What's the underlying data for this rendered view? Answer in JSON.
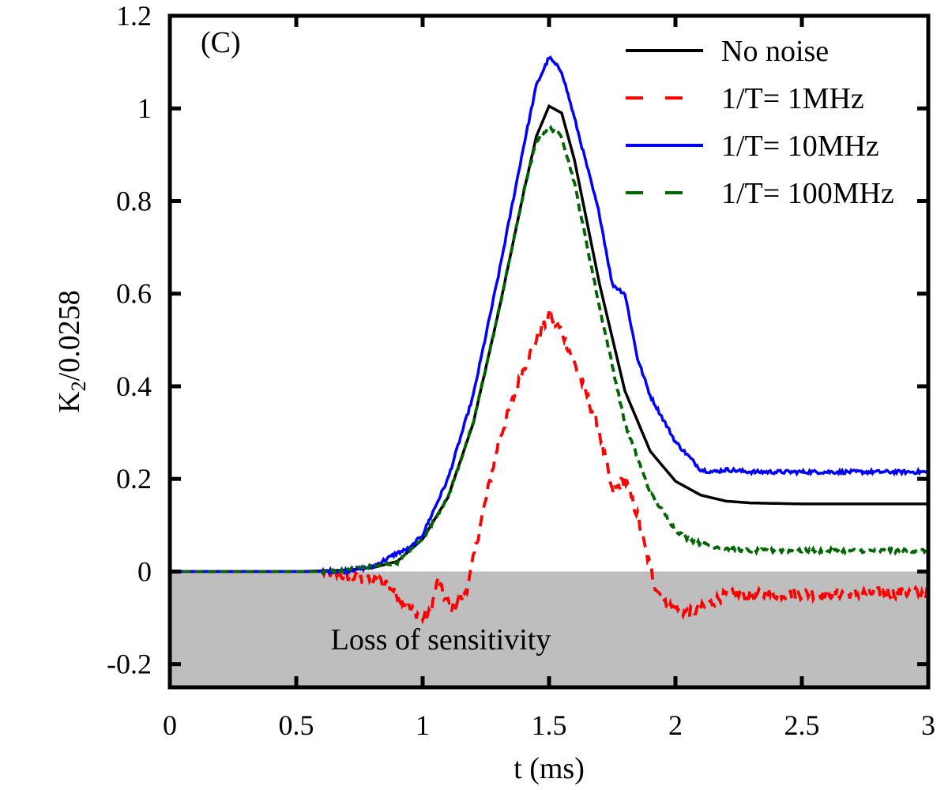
{
  "chart_data": {
    "type": "line",
    "panel_label": "(C)",
    "xlabel": "t (ms)",
    "ylabel_main": "K",
    "ylabel_sub": "2",
    "ylabel_rest": "/0.0258",
    "xlim": [
      0,
      3
    ],
    "ylim": [
      -0.25,
      1.2
    ],
    "xticks": [
      0,
      0.5,
      1,
      1.5,
      2,
      2.5,
      3
    ],
    "xtick_labels": [
      "0",
      "0.5",
      "1",
      "1.5",
      "2",
      "2.5",
      "3"
    ],
    "yticks": [
      -0.2,
      0,
      0.2,
      0.4,
      0.6,
      0.8,
      1,
      1.2
    ],
    "ytick_labels": [
      "-0.2",
      "0",
      "0.2",
      "0.4",
      "0.6",
      "0.8",
      "1",
      "1.2"
    ],
    "shaded_region": {
      "y_from": -0.25,
      "y_to": 0,
      "color": "#bebebe",
      "label": "Loss of sensitivity"
    },
    "legend_position": "top-right",
    "series": [
      {
        "name": "No noise",
        "color": "#000000",
        "style": "solid",
        "x": [
          0,
          0.5,
          0.7,
          0.8,
          0.9,
          1.0,
          1.1,
          1.2,
          1.3,
          1.4,
          1.45,
          1.5,
          1.55,
          1.6,
          1.7,
          1.8,
          1.9,
          2.0,
          2.1,
          2.2,
          2.3,
          2.5,
          3.0
        ],
        "y": [
          0,
          0,
          0.003,
          0.008,
          0.022,
          0.07,
          0.16,
          0.32,
          0.56,
          0.82,
          0.94,
          1.005,
          0.99,
          0.89,
          0.62,
          0.39,
          0.26,
          0.195,
          0.165,
          0.152,
          0.148,
          0.146,
          0.146
        ]
      },
      {
        "name": "1/T= 1MHz",
        "color": "#ff0000",
        "style": "dashed",
        "x": [
          0,
          0.6,
          0.7,
          0.8,
          0.85,
          0.9,
          0.95,
          1.0,
          1.03,
          1.06,
          1.09,
          1.12,
          1.15,
          1.18,
          1.22,
          1.26,
          1.3,
          1.35,
          1.4,
          1.45,
          1.5,
          1.55,
          1.6,
          1.65,
          1.7,
          1.75,
          1.8,
          1.85,
          1.88,
          1.92,
          1.96,
          2.0,
          2.05,
          2.1,
          2.2,
          2.3,
          2.5,
          3.0
        ],
        "y": [
          0,
          0,
          -0.01,
          -0.02,
          -0.02,
          -0.05,
          -0.08,
          -0.1,
          -0.09,
          -0.02,
          -0.06,
          -0.08,
          -0.06,
          -0.03,
          0.08,
          0.18,
          0.28,
          0.36,
          0.44,
          0.5,
          0.55,
          0.52,
          0.45,
          0.38,
          0.3,
          0.17,
          0.2,
          0.12,
          0.05,
          -0.03,
          -0.07,
          -0.08,
          -0.09,
          -0.08,
          -0.05,
          -0.05,
          -0.048,
          -0.045
        ]
      },
      {
        "name": "1/T= 10MHz",
        "color": "#0000ff",
        "style": "solid",
        "x": [
          0,
          0.6,
          0.7,
          0.8,
          0.9,
          0.95,
          1.0,
          1.1,
          1.2,
          1.3,
          1.4,
          1.45,
          1.5,
          1.55,
          1.6,
          1.7,
          1.75,
          1.8,
          1.85,
          1.9,
          2.0,
          2.1,
          2.15,
          2.2,
          2.3,
          2.5,
          3.0
        ],
        "y": [
          0,
          0,
          0.002,
          0.01,
          0.04,
          0.05,
          0.08,
          0.2,
          0.38,
          0.64,
          0.92,
          1.05,
          1.11,
          1.08,
          0.98,
          0.77,
          0.62,
          0.6,
          0.46,
          0.38,
          0.28,
          0.22,
          0.215,
          0.22,
          0.215,
          0.215,
          0.215
        ]
      },
      {
        "name": "1/T= 100MHz",
        "color": "#006400",
        "style": "dashed",
        "x": [
          0,
          0.6,
          0.7,
          0.8,
          0.9,
          1.0,
          1.1,
          1.2,
          1.3,
          1.4,
          1.45,
          1.5,
          1.55,
          1.6,
          1.7,
          1.8,
          1.9,
          2.0,
          2.05,
          2.1,
          2.2,
          2.3,
          2.5,
          3.0
        ],
        "y": [
          0,
          0,
          0.005,
          0.01,
          0.02,
          0.07,
          0.16,
          0.32,
          0.56,
          0.82,
          0.93,
          0.96,
          0.94,
          0.84,
          0.57,
          0.32,
          0.17,
          0.09,
          0.07,
          0.06,
          0.05,
          0.045,
          0.045,
          0.045
        ]
      }
    ]
  }
}
